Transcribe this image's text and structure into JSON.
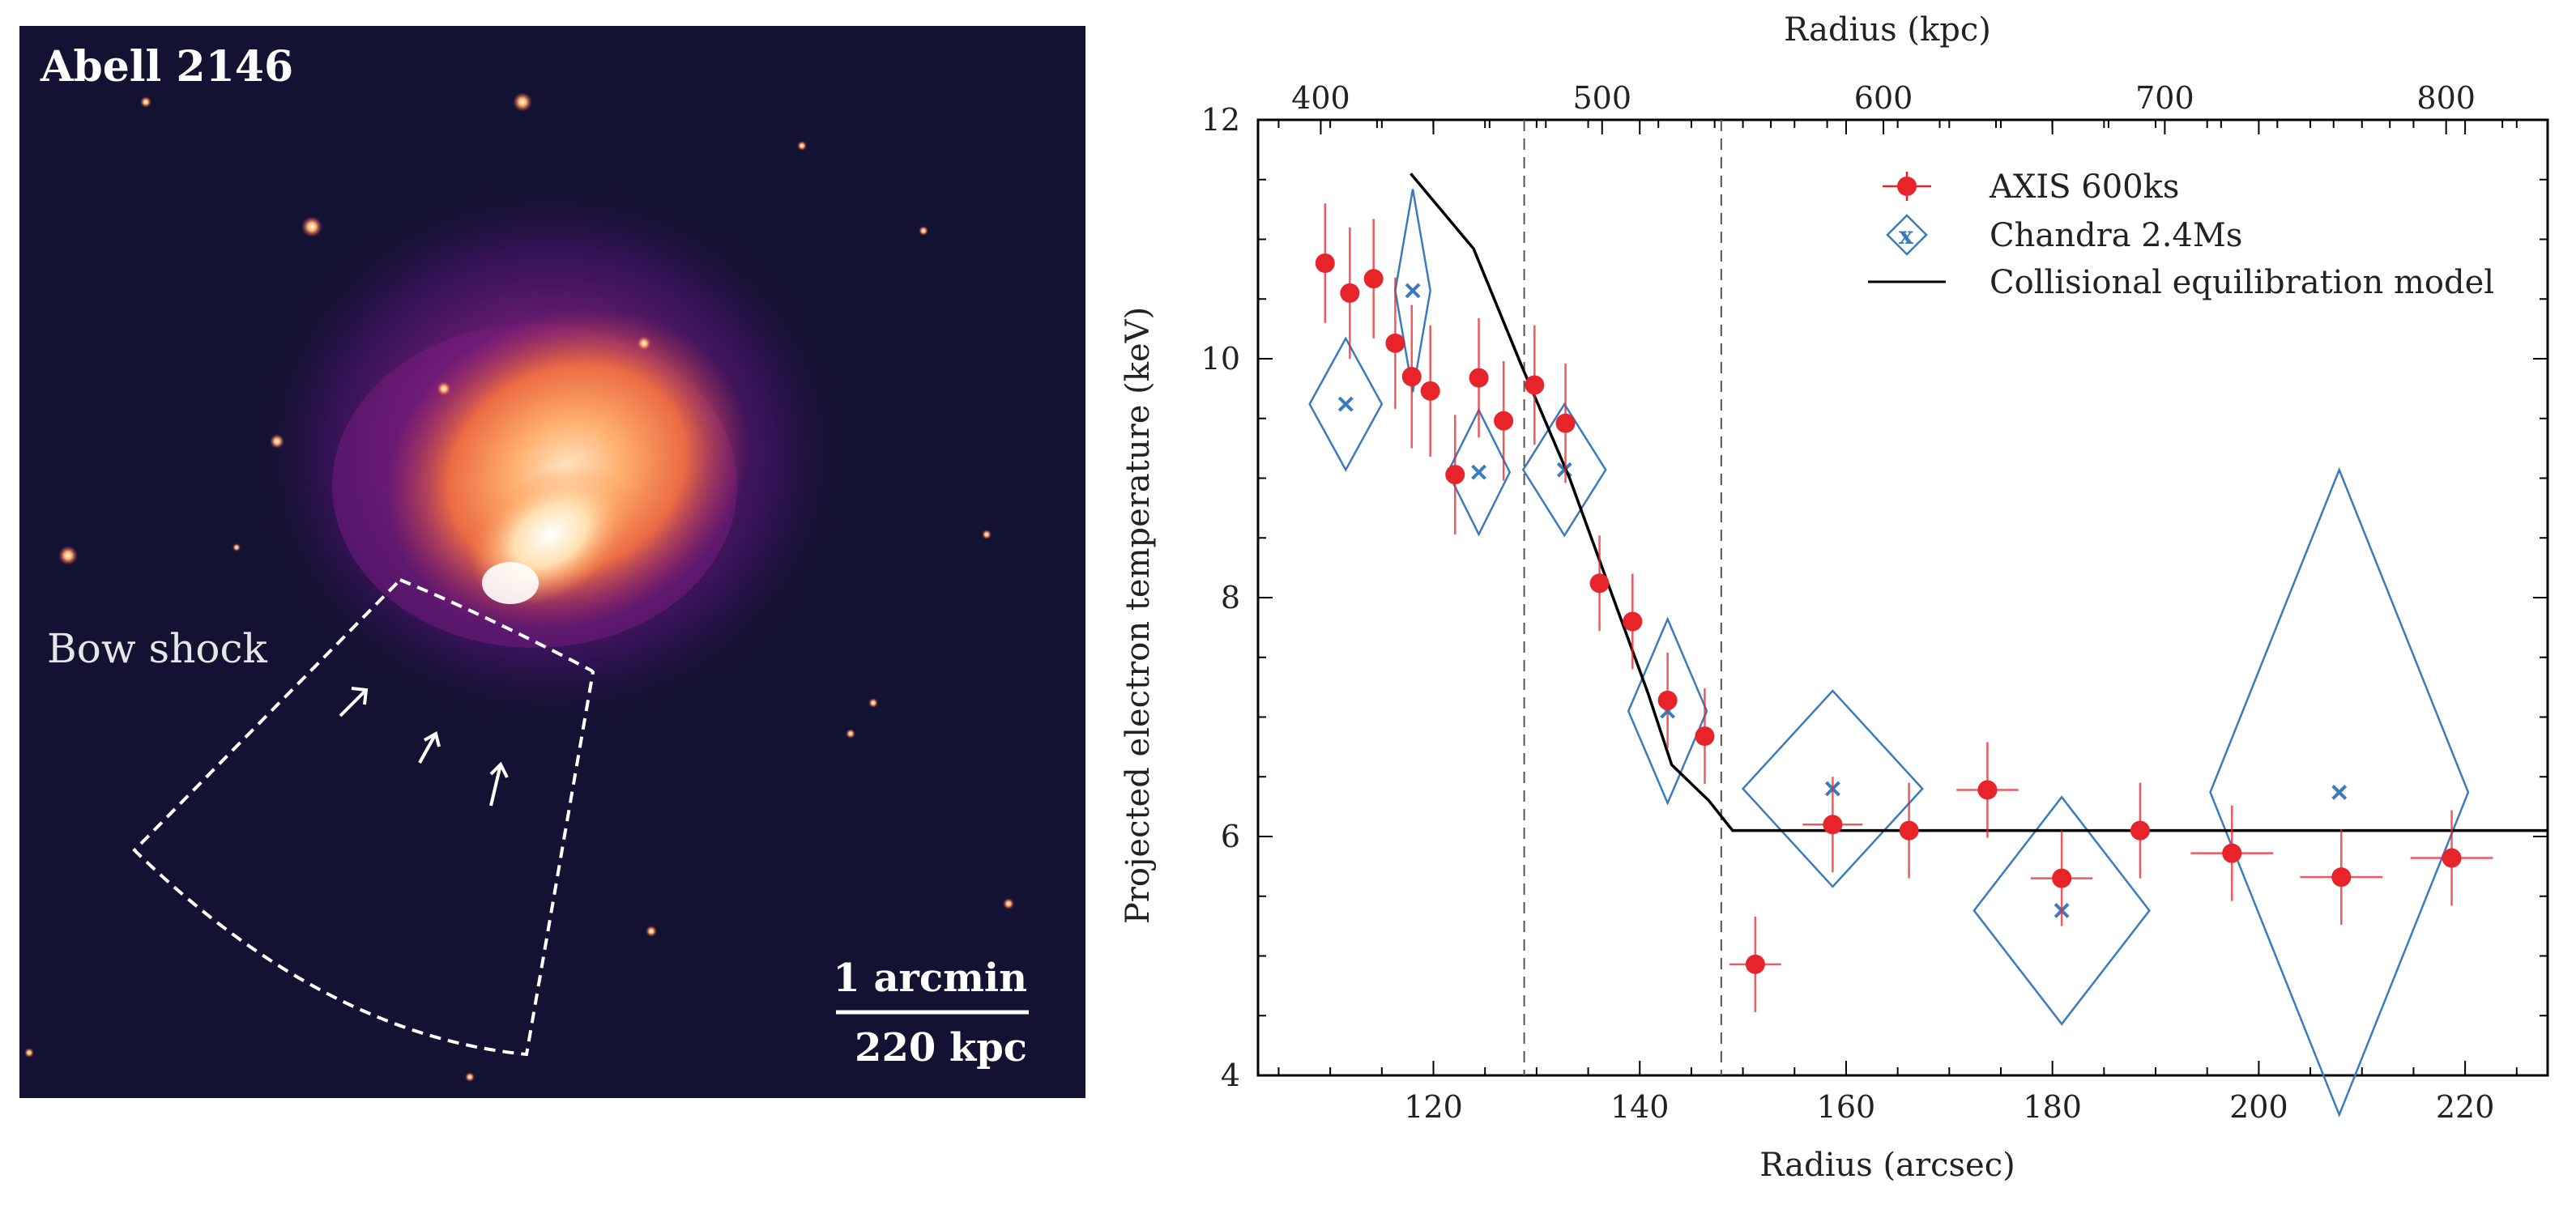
{
  "image_panel": {
    "cluster_name": "Abell 2146",
    "feature_label": "Bow shock",
    "scale_bar": {
      "angular": "1 arcmin",
      "physical": "220 kpc"
    }
  },
  "chart_data": {
    "type": "scatter",
    "xlabel": "Radius (arcsec)",
    "ylabel": "Projected electron temperature (keV)",
    "top_xlabel": "Radius (kpc)",
    "xlim": [
      103,
      228
    ],
    "ylim": [
      4,
      12
    ],
    "x_ticks": [
      120,
      140,
      160,
      180,
      200,
      220
    ],
    "y_ticks": [
      4,
      6,
      8,
      10,
      12
    ],
    "top_ticks": [
      {
        "kpc": 400,
        "label": "400"
      },
      {
        "kpc": 500,
        "label": "500"
      },
      {
        "kpc": 600,
        "label": "600"
      },
      {
        "kpc": 700,
        "label": "700"
      },
      {
        "kpc": 800,
        "label": "800"
      }
    ],
    "arcsec_per_kpc": 0.2727,
    "vlines": [
      128.8,
      147.9
    ],
    "legend_position": "top-right",
    "series": [
      {
        "name": "AXIS 600ks",
        "color": "#e8242b",
        "marker": "circle",
        "points": [
          {
            "x": 109.5,
            "y": 10.8,
            "xerr": 0,
            "yerr": 0.5
          },
          {
            "x": 111.9,
            "y": 10.55,
            "xerr": 0,
            "yerr": 0.55
          },
          {
            "x": 114.2,
            "y": 10.67,
            "xerr": 0,
            "yerr": 0.5
          },
          {
            "x": 116.3,
            "y": 10.13,
            "xerr": 0,
            "yerr": 0.55
          },
          {
            "x": 117.9,
            "y": 9.85,
            "xerr": 0,
            "yerr": 0.6
          },
          {
            "x": 119.7,
            "y": 9.73,
            "xerr": 0,
            "yerr": 0.55
          },
          {
            "x": 122.1,
            "y": 9.03,
            "xerr": 0,
            "yerr": 0.5
          },
          {
            "x": 124.4,
            "y": 9.84,
            "xerr": 0,
            "yerr": 0.5
          },
          {
            "x": 126.8,
            "y": 9.48,
            "xerr": 0,
            "yerr": 0.5
          },
          {
            "x": 129.8,
            "y": 9.78,
            "xerr": 0,
            "yerr": 0.5
          },
          {
            "x": 132.8,
            "y": 9.46,
            "xerr": 0,
            "yerr": 0.5
          },
          {
            "x": 136.1,
            "y": 8.12,
            "xerr": 0,
            "yerr": 0.4
          },
          {
            "x": 139.3,
            "y": 7.8,
            "xerr": 0,
            "yerr": 0.4
          },
          {
            "x": 142.7,
            "y": 7.14,
            "xerr": 0,
            "yerr": 0.4
          },
          {
            "x": 146.3,
            "y": 6.84,
            "xerr": 0,
            "yerr": 0.4
          },
          {
            "x": 151.2,
            "y": 4.93,
            "xerr": 2.5,
            "yerr": 0.4
          },
          {
            "x": 158.7,
            "y": 6.1,
            "xerr": 2.9,
            "yerr": 0.4
          },
          {
            "x": 166.1,
            "y": 6.05,
            "xerr": 0,
            "yerr": 0.4
          },
          {
            "x": 173.7,
            "y": 6.39,
            "xerr": 3.0,
            "yerr": 0.4
          },
          {
            "x": 180.9,
            "y": 5.65,
            "xerr": 3.0,
            "yerr": 0.4
          },
          {
            "x": 188.5,
            "y": 6.05,
            "xerr": 0,
            "yerr": 0.4
          },
          {
            "x": 197.4,
            "y": 5.86,
            "xerr": 4.0,
            "yerr": 0.4
          },
          {
            "x": 208.0,
            "y": 5.66,
            "xerr": 4.0,
            "yerr": 0.4
          },
          {
            "x": 218.7,
            "y": 5.82,
            "xerr": 4.0,
            "yerr": 0.4
          }
        ]
      },
      {
        "name": "Chandra 2.4Ms",
        "color": "#3a7bbd",
        "marker": "x-diamond",
        "points": [
          {
            "x": 111.5,
            "y": 9.62,
            "xerr": 3.5,
            "yerr": 0.55
          },
          {
            "x": 118.0,
            "y": 10.57,
            "xerr": 1.7,
            "yerr": 0.85
          },
          {
            "x": 124.4,
            "y": 9.05,
            "xerr": 3.0,
            "yerr": 0.52
          },
          {
            "x": 132.7,
            "y": 9.07,
            "xerr": 4.0,
            "yerr": 0.55
          },
          {
            "x": 142.7,
            "y": 7.05,
            "xerr": 3.8,
            "yerr": 0.77
          },
          {
            "x": 158.7,
            "y": 6.4,
            "xerr": 8.7,
            "yerr": 0.82
          },
          {
            "x": 180.9,
            "y": 5.38,
            "xerr": 8.5,
            "yerr": 0.95
          },
          {
            "x": 207.8,
            "y": 6.37,
            "xerr": 12.5,
            "yerr": 2.7
          }
        ]
      },
      {
        "name": "Collisional equilibration model",
        "color": "#000000",
        "marker": "line",
        "points": [
          {
            "x": 117.8,
            "y": 11.55
          },
          {
            "x": 123.9,
            "y": 10.92
          },
          {
            "x": 128.6,
            "y": 9.93
          },
          {
            "x": 133.2,
            "y": 9.0
          },
          {
            "x": 137.5,
            "y": 7.98
          },
          {
            "x": 140.8,
            "y": 7.2
          },
          {
            "x": 143.1,
            "y": 6.6
          },
          {
            "x": 146.7,
            "y": 6.3
          },
          {
            "x": 149.0,
            "y": 6.05
          },
          {
            "x": 228.0,
            "y": 6.05
          }
        ]
      }
    ]
  }
}
